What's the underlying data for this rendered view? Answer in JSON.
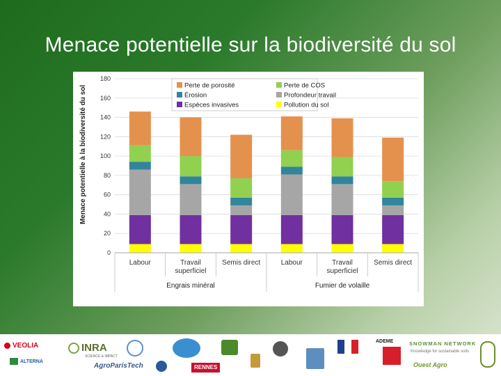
{
  "slide": {
    "title": "Menace potentielle sur la biodiversité du sol"
  },
  "chart_data": {
    "type": "bar",
    "stacked": true,
    "ylabel": "Menace potentielle à la biodiversité du sol",
    "ylim": [
      0,
      180
    ],
    "yticks": [
      0,
      20,
      40,
      60,
      80,
      100,
      120,
      140,
      160,
      180
    ],
    "grid": true,
    "legend_position": "top",
    "categories": [
      "Labour",
      "Travail superficiel",
      "Semis direct",
      "Labour",
      "Travail superficiel",
      "Semis direct"
    ],
    "category_lines": [
      [
        "Labour"
      ],
      [
        "Travail",
        "superficiel"
      ],
      [
        "Semis direct"
      ],
      [
        "Labour"
      ],
      [
        "Travail",
        "superficiel"
      ],
      [
        "Semis direct"
      ]
    ],
    "groups": [
      {
        "label": "Engrais minéral",
        "categories": [
          0,
          1,
          2
        ]
      },
      {
        "label": "Fumier de volaille",
        "categories": [
          3,
          4,
          5
        ]
      }
    ],
    "series": [
      {
        "name": "Pollution du sol",
        "color": "#ffff00",
        "values": [
          9,
          9,
          9,
          9,
          9,
          9
        ]
      },
      {
        "name": "Espèces invasives",
        "color": "#7030a0",
        "values": [
          30,
          30,
          30,
          30,
          30,
          30
        ]
      },
      {
        "name": "Profondeur travail",
        "color": "#a6a6a6",
        "values": [
          47,
          32,
          10,
          42,
          32,
          10
        ]
      },
      {
        "name": "Érosion",
        "color": "#31859c",
        "values": [
          8,
          8,
          8,
          8,
          8,
          8
        ]
      },
      {
        "name": "Perte de COS",
        "color": "#92d050",
        "values": [
          17,
          21,
          20,
          17,
          20,
          17
        ]
      },
      {
        "name": "Perte de porosité",
        "color": "#e4914d",
        "values": [
          35,
          40,
          45,
          35,
          40,
          45
        ]
      }
    ],
    "legend_order": [
      "Perte de porosité",
      "Perte de COS",
      "Érosion",
      "Profondeur travail",
      "Espèces invasives",
      "Pollution du sol"
    ]
  },
  "logos": {
    "veolia": "VEOLIA",
    "inra": "INRA",
    "inra_sub": "SCIENCE & IMPACT",
    "altereco": "ALTERNA",
    "agro": "AgroParisTech",
    "rennes": "RENNES",
    "ademe": "ADEME",
    "snowman": "SNOWMAN NETWORK",
    "snowman_sub": "Knowledge for sustainable soils",
    "ouest": "Ouest Agro"
  }
}
